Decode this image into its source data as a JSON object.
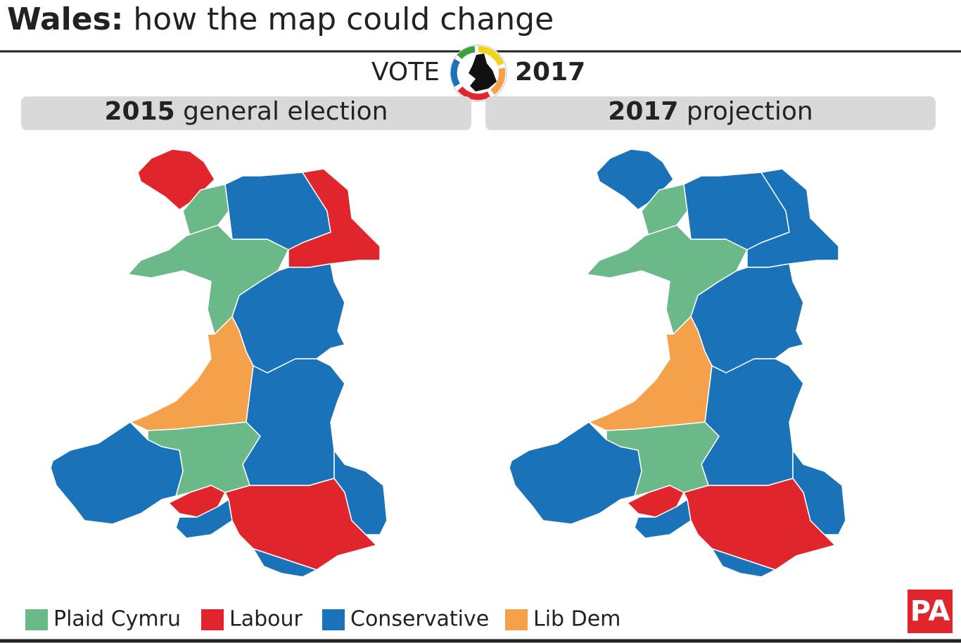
{
  "header": {
    "title_bold": "Wales:",
    "title": "how the map could change",
    "logo_text": "VOTE",
    "logo_year": "2017"
  },
  "panels": [
    {
      "title_bold": "2015",
      "title": "general election"
    },
    {
      "title_bold": "2017",
      "title": "projection"
    }
  ],
  "legend": [
    {
      "label": "Plaid Cymru",
      "color": "#6bb889"
    },
    {
      "label": "Labour",
      "color": "#e0262c"
    },
    {
      "label": "Conservative",
      "color": "#1a73b9"
    },
    {
      "label": "Lib Dem",
      "color": "#f5a04a"
    }
  ],
  "footer": {
    "brand": "PA"
  }
}
